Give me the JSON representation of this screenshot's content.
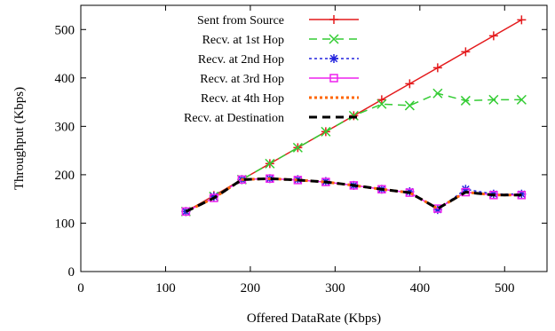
{
  "chart_data": {
    "type": "line",
    "title": "",
    "xlabel": "Offered DataRate (Kbps)",
    "ylabel": "Throughput (Kbps)",
    "xlim": [
      0,
      550
    ],
    "ylim": [
      0,
      550
    ],
    "x_ticks": [
      0,
      100,
      200,
      300,
      400,
      500
    ],
    "y_ticks": [
      0,
      100,
      200,
      300,
      400,
      500
    ],
    "grid": false,
    "legend_position": "top-right",
    "x": [
      124,
      157,
      190,
      223,
      256,
      289,
      322,
      355,
      388,
      421,
      454,
      487,
      520
    ],
    "series": [
      {
        "name": "Sent from Source",
        "color": "#e41a1c",
        "marker": "plus",
        "line_style": "solid",
        "values": [
          124,
          157,
          190,
          223,
          256,
          289,
          322,
          355,
          388,
          421,
          454,
          487,
          520
        ]
      },
      {
        "name": "Recv. at 1st  Hop",
        "color": "#33cc33",
        "marker": "cross",
        "line_style": "dashed",
        "values": [
          124,
          155,
          190,
          223,
          256,
          289,
          322,
          346,
          343,
          368,
          353,
          355,
          355
        ]
      },
      {
        "name": "Recv. at 2nd Hop",
        "color": "#2222dd",
        "marker": "asterisk",
        "line_style": "dotted",
        "values": [
          124,
          155,
          190,
          192,
          190,
          186,
          178,
          170,
          165,
          128,
          170,
          160,
          160
        ]
      },
      {
        "name": "Recv. at 3rd  Hop",
        "color": "#ee22ee",
        "marker": "square",
        "line_style": "solid",
        "values": [
          124,
          152,
          190,
          192,
          189,
          185,
          178,
          170,
          163,
          130,
          164,
          158,
          158
        ]
      },
      {
        "name": "Recv. at 4th  Hop",
        "color": "#ff6600",
        "marker": "none",
        "line_style": "dotted",
        "values": [
          124,
          152,
          190,
          192,
          189,
          185,
          178,
          170,
          163,
          130,
          164,
          158,
          158
        ]
      },
      {
        "name": "Recv. at Destination",
        "color": "#000000",
        "marker": "none",
        "line_style": "dashed",
        "values": [
          124,
          152,
          190,
          192,
          189,
          185,
          178,
          170,
          163,
          130,
          164,
          158,
          158
        ]
      }
    ]
  }
}
